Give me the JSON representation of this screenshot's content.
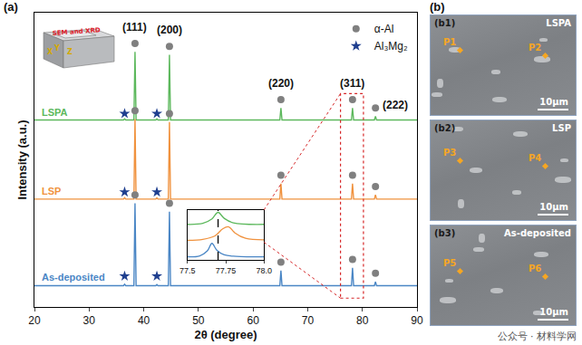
{
  "chart_data": [
    {
      "type": "line",
      "xlabel": "2θ (degree)",
      "ylabel": "Intensity (a.u.)",
      "xlim": [
        20,
        90
      ],
      "xticks": [
        20,
        30,
        40,
        50,
        60,
        70,
        80,
        90
      ],
      "ylim": [
        0,
        105
      ],
      "tick_labels": "x",
      "grid": false,
      "legend": "top-right",
      "x": [
        20,
        36.3,
        36.5,
        36.7,
        38.2,
        38.4,
        38.6,
        42.2,
        42.4,
        42.6,
        44.5,
        44.7,
        44.9,
        64.9,
        65.1,
        65.3,
        78.0,
        78.2,
        78.4,
        82.2,
        82.4,
        82.6,
        90
      ],
      "series": [
        {
          "name": "LSPA",
          "color": "#5cb85c",
          "values": [
            66.7,
            66.7,
            67.1,
            66.7,
            66.7,
            91,
            66.7,
            66.7,
            67.1,
            66.7,
            66.7,
            90,
            66.7,
            66.7,
            71,
            66.7,
            66.7,
            71,
            66.7,
            66.7,
            68,
            66.7,
            66.7
          ]
        },
        {
          "name": "LSP",
          "color": "#f0923e",
          "values": [
            38.5,
            38.5,
            39,
            38.5,
            38.5,
            67,
            38.5,
            38.5,
            38.9,
            38.5,
            38.5,
            66,
            38.5,
            38.5,
            44,
            38.5,
            38.5,
            44,
            38.5,
            38.5,
            40,
            38.5,
            38.5
          ]
        },
        {
          "name": "As-deposited",
          "color": "#4a86c5",
          "values": [
            7.6,
            7.6,
            8.1,
            7.6,
            7.6,
            37,
            7.6,
            7.6,
            8.0,
            7.6,
            7.6,
            34,
            7.6,
            7.6,
            13,
            7.6,
            7.6,
            14,
            7.6,
            7.6,
            9,
            7.6,
            7.6
          ]
        },
        {
          "name": "α-Al",
          "type": "scatter",
          "marker": "circle",
          "color": "#808080",
          "x": [
            38.4,
            44.7,
            65.1,
            78.2,
            82.4,
            38.4,
            44.7,
            65.1,
            78.2,
            82.4,
            38.4,
            44.7,
            65.1,
            78.2,
            82.4
          ],
          "values": [
            94,
            93,
            74,
            74,
            71,
            70,
            69,
            47,
            47,
            43,
            40,
            37,
            16,
            17,
            12
          ]
        },
        {
          "name": "Al₃Mg₂",
          "type": "scatter",
          "marker": "star",
          "color": "#1f3f8f",
          "x": [
            36.5,
            42.4,
            36.5,
            42.4,
            36.5,
            42.4
          ],
          "values": [
            69,
            69,
            41,
            41,
            11,
            11
          ]
        }
      ],
      "annotations": [
        {
          "text": "(111)",
          "x": 38.4,
          "y": 97
        },
        {
          "text": "(200)",
          "x": 44.7,
          "y": 96
        },
        {
          "text": "(220)",
          "x": 65.1,
          "y": 77
        },
        {
          "text": "(311)",
          "x": 78.2,
          "y": 77
        },
        {
          "text": "(222)",
          "x": 86,
          "y": 69
        }
      ]
    },
    {
      "type": "line",
      "xlim": [
        77.5,
        78.0
      ],
      "xticks": [
        77.5,
        77.75,
        {
          "value": 78.0,
          "label": "78.0"
        }
      ],
      "ylim": [
        0,
        10
      ],
      "tick_labels": "x",
      "grid": false,
      "series": [
        {
          "color": "#5cb85c",
          "x": [
            77.5,
            77.6,
            77.66,
            77.7,
            77.74,
            77.8,
            78.0
          ],
          "values": [
            7.1,
            7.3,
            8.2,
            9.5,
            8.3,
            7.4,
            7.1
          ]
        },
        {
          "color": "#f0923e",
          "x": [
            77.5,
            77.6,
            77.68,
            77.73,
            77.77,
            77.81,
            77.88,
            78.0
          ],
          "values": [
            3.9,
            4.1,
            4.8,
            6.2,
            6.6,
            5.4,
            4.3,
            4.0
          ]
        },
        {
          "color": "#4a86c5",
          "x": [
            77.5,
            77.58,
            77.63,
            77.66,
            77.69,
            77.74,
            77.82,
            78.0
          ],
          "values": [
            0.6,
            0.8,
            1.8,
            3.3,
            2.0,
            1.0,
            0.7,
            0.6
          ]
        },
        {
          "color": "#000000",
          "line_style": "dashed",
          "x": [
            77.7,
            77.7
          ],
          "values": [
            0,
            10
          ]
        }
      ]
    }
  ],
  "panel_labels": [
    "(a)",
    "(b)"
  ],
  "sample_sketch": {
    "text": "SEM and XRD",
    "axes": [
      "X",
      "Y",
      "Z"
    ]
  },
  "sem_images": [
    {
      "label": "(b1)",
      "sample": "LSPA",
      "points": [
        "P1",
        "P2"
      ],
      "scale_bar": "10μm"
    },
    {
      "label": "(b2)",
      "sample": "LSP",
      "points": [
        "P3",
        "P4"
      ],
      "scale_bar": "10μm"
    },
    {
      "label": "(b3)",
      "sample": "As-deposited",
      "points": [
        "P5",
        "P6"
      ],
      "scale_bar": "10μm"
    }
  ],
  "watermark": "公众号 · 材料学网"
}
